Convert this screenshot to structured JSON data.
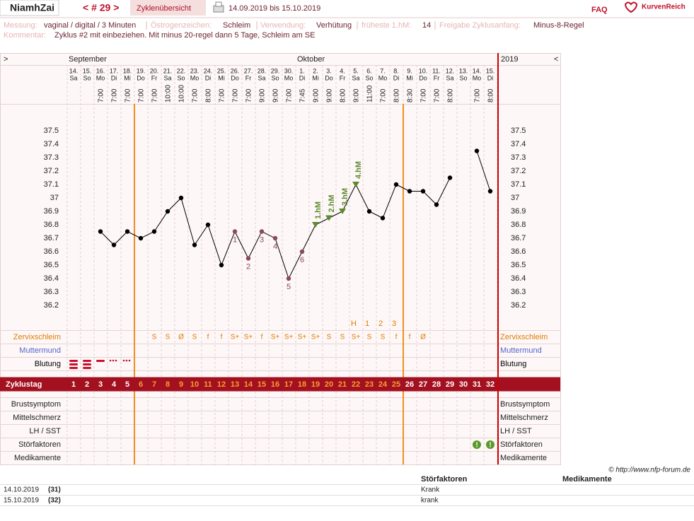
{
  "header": {
    "user": "NiamhZai",
    "cycle_nav": "< # 29 >",
    "tab": "Zyklenübersicht",
    "range": "14.09.2019 bis 15.10.2019",
    "faq": "FAQ",
    "logo": "KurvenReich"
  },
  "info": {
    "fields": [
      {
        "label": "Messung:",
        "value": "vaginal / digital / 3 Minuten"
      },
      {
        "label": "Östrogenzeichen:",
        "value": "Schleim"
      },
      {
        "label": "Verwendung:",
        "value": "Verhütung"
      },
      {
        "label": "früheste 1.hM:",
        "value": "14"
      },
      {
        "label": "Freigabe Zyklusanfang:",
        "value": "Minus-8-Regel"
      }
    ],
    "comment": {
      "label": "Kommentar:",
      "value": "Zyklus #2  mit einbeziehen. Mit minus 20-regel dann 5 Tage,  Schleim am SE"
    }
  },
  "chart_data": {
    "type": "line",
    "nav_left": ">",
    "nav_right": "<",
    "year": "2019",
    "months": [
      "September",
      null,
      null,
      null,
      null,
      null,
      null,
      null,
      null,
      null,
      null,
      null,
      null,
      null,
      null,
      null,
      null,
      "Oktober",
      null,
      null,
      null,
      null,
      null,
      null,
      null,
      null,
      null,
      null,
      null,
      null,
      null,
      null
    ],
    "dates": [
      "14.",
      "15.",
      "16.",
      "17.",
      "18.",
      "19.",
      "20.",
      "21.",
      "22.",
      "23.",
      "24.",
      "25.",
      "26.",
      "27.",
      "28.",
      "29.",
      "30.",
      "1.",
      "2.",
      "3.",
      "4.",
      "5.",
      "6.",
      "7.",
      "8.",
      "9.",
      "10.",
      "11.",
      "12.",
      "13.",
      "14.",
      "15."
    ],
    "weekdays": [
      "Sa",
      "So",
      "Mo",
      "Di",
      "Mi",
      "Do",
      "Fr",
      "Sa",
      "So",
      "Mo",
      "Di",
      "Mi",
      "Do",
      "Fr",
      "Sa",
      "So",
      "Mo",
      "Di",
      "Mi",
      "Do",
      "Fr",
      "Sa",
      "So",
      "Mo",
      "Di",
      "Mi",
      "Do",
      "Fr",
      "Sa",
      "So",
      "Mo",
      "Di"
    ],
    "times": [
      null,
      null,
      "7:00",
      "7:00",
      "7:00",
      "7:00",
      "7:00",
      "10:00",
      "10:00",
      "7:00",
      "8:00",
      "7:00",
      "7:00",
      "7:00",
      "9:00",
      "9:00",
      "7:00",
      "7:45",
      "9:00",
      "9:00",
      "8:00",
      "9:00",
      "11:00",
      "7:00",
      "8:00",
      "8:30",
      "7:00",
      "7:00",
      "8:00",
      null,
      "7:00",
      "8:00"
    ],
    "category_label": "Zyklustag",
    "categories": [
      1,
      2,
      3,
      4,
      5,
      6,
      7,
      8,
      9,
      10,
      11,
      12,
      13,
      14,
      15,
      16,
      17,
      18,
      19,
      20,
      21,
      22,
      23,
      24,
      25,
      26,
      27,
      28,
      29,
      30,
      31,
      32
    ],
    "values": [
      null,
      null,
      36.75,
      36.65,
      36.75,
      36.7,
      36.75,
      36.9,
      37.0,
      36.65,
      36.8,
      36.5,
      36.75,
      36.55,
      36.75,
      36.7,
      36.4,
      36.6,
      36.8,
      36.85,
      36.9,
      37.1,
      36.9,
      36.85,
      37.1,
      37.05,
      37.05,
      36.95,
      37.15,
      null,
      37.35,
      37.05
    ],
    "point_labels": [
      null,
      null,
      null,
      null,
      null,
      null,
      null,
      null,
      null,
      null,
      null,
      null,
      "1",
      "2",
      "3",
      "4",
      "5",
      "6",
      "1.hM",
      "2.hM",
      "3.hM",
      "4.hM",
      null,
      null,
      null,
      null,
      null,
      null,
      null,
      null,
      null,
      null
    ],
    "colors": [
      "#000",
      "#000",
      "#000",
      "#000",
      "#000",
      "#000",
      "#000",
      "#000",
      "#000",
      "#000",
      "#000",
      "#000",
      "#8b4a5a",
      "#8b4a5a",
      "#8b4a5a",
      "#8b4a5a",
      "#8b4a5a",
      "#8b4a5a",
      "#5d8a2e",
      "#5d8a2e",
      "#5d8a2e",
      "#5d8a2e",
      "#000",
      "#000",
      "#000",
      "#000",
      "#000",
      "#000",
      "#000",
      "#000",
      "#000",
      "#000"
    ],
    "markers": [
      "circle",
      "circle",
      "circle",
      "circle",
      "circle",
      "circle",
      "circle",
      "circle",
      "circle",
      "circle",
      "circle",
      "circle",
      "circle",
      "circle",
      "circle",
      "circle",
      "circle",
      "circle",
      "triangle",
      "triangle",
      "triangle",
      "triangle",
      "circle",
      "circle",
      "circle",
      "circle",
      "circle",
      "circle",
      "circle",
      "circle",
      "circle",
      "circle"
    ],
    "line_color": "#000",
    "ylim": [
      36.05,
      37.7
    ],
    "yticks": [
      37.5,
      37.4,
      37.3,
      37.2,
      37.1,
      37,
      36.9,
      36.8,
      36.7,
      36.6,
      36.5,
      36.4,
      36.3,
      36.2
    ],
    "highlight_days": [
      6,
      25
    ],
    "peak_labels": [
      null,
      null,
      null,
      null,
      null,
      null,
      null,
      null,
      null,
      null,
      null,
      null,
      null,
      null,
      null,
      null,
      null,
      null,
      null,
      null,
      null,
      "H",
      "1",
      "2",
      "3",
      null,
      null,
      null,
      null,
      null,
      null,
      null
    ],
    "rows_top": [
      {
        "name": "Zervixschleim",
        "color": "#e07b00",
        "values": [
          null,
          null,
          null,
          null,
          null,
          null,
          "S",
          "S",
          "Ø",
          "S",
          "f",
          "f",
          "S+",
          "S+",
          "f",
          "S+",
          "S+",
          "S+",
          "S+",
          "S",
          "S",
          "S+",
          "S",
          "S",
          "f",
          "f",
          "Ø",
          null,
          null,
          null,
          null,
          null
        ]
      },
      {
        "name": "Muttermund",
        "color": "#5566cc"
      },
      {
        "name": "Blutung",
        "color": "#000"
      }
    ],
    "rows_bottom": [
      {
        "name": "Brustsymptom"
      },
      {
        "name": "Mittelschmerz"
      },
      {
        "name": "LH / SST"
      },
      {
        "name": "Störfaktoren",
        "values": [
          null,
          null,
          null,
          null,
          null,
          null,
          null,
          null,
          null,
          null,
          null,
          null,
          null,
          null,
          null,
          null,
          null,
          null,
          null,
          null,
          null,
          null,
          null,
          null,
          null,
          null,
          null,
          null,
          null,
          null,
          "!",
          "!"
        ]
      },
      {
        "name": "Medikamente"
      }
    ]
  },
  "copyright": "© http://www.nfp-forum.de",
  "notes": {
    "columns": [
      "Störfaktoren",
      "Medikamente"
    ],
    "rows": [
      [
        "14.10.2019",
        "(31)",
        "Krank"
      ],
      [
        "15.10.2019",
        "(32)",
        "krank"
      ]
    ]
  }
}
